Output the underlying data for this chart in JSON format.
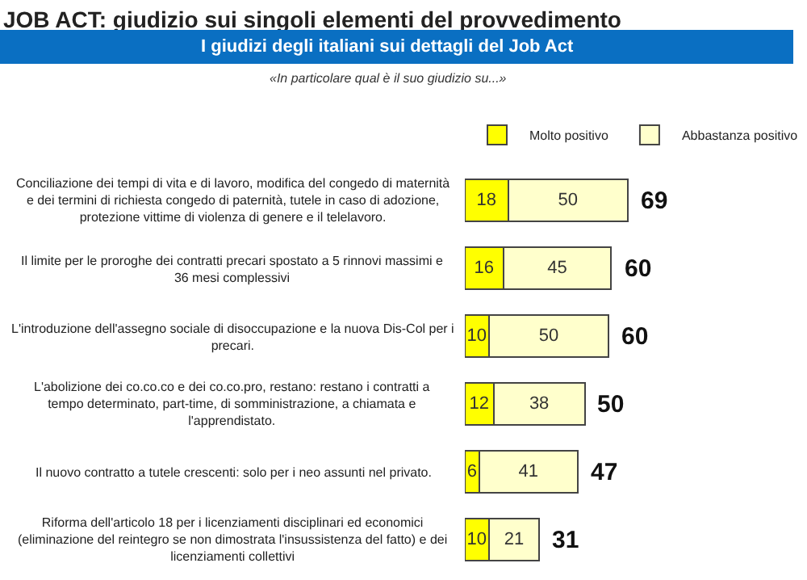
{
  "chart_data": {
    "type": "bar",
    "orientation": "horizontal",
    "stacked": true,
    "title": "JOB ACT: giudizio sui singoli elementi del provvedimento",
    "subtitle": "I giudizi degli italiani sui dettagli del Job Act",
    "annotations": [
      "«In particolare qual è il suo giudizio su...»"
    ],
    "categories": [
      "Conciliazione dei tempi di vita e di lavoro, modifica del congedo di maternità e dei termini di richiesta congedo di paternità, tutele in caso di adozione, protezione vittime di violenza di genere e il telelavoro.",
      "Il limite per le proroghe dei contratti precari spostato a 5 rinnovi massimi e 36 mesi complessivi",
      "L'introduzione dell'assegno sociale di disoccupazione e la nuova Dis-Col per i precari.",
      "L'abolizione dei co.co.co e dei co.co.pro, restano: restano i contratti a tempo determinato, part-time, di somministrazione, a chiamata e l'apprendistato.",
      "Il nuovo contratto a tutele crescenti: solo per i neo assunti nel privato.",
      "Riforma dell'articolo 18 per i licenziamenti disciplinari ed economici (eliminazione del reintegro se non dimostrata l'insussistenza del fatto) e dei licenziamenti collettivi"
    ],
    "series": [
      {
        "name": "Molto positivo",
        "color": "#ffff00",
        "values": [
          18,
          16,
          10,
          12,
          6,
          10
        ]
      },
      {
        "name": "Abbastanza positivo",
        "color": "#ffffcc",
        "values": [
          50,
          45,
          50,
          38,
          41,
          21
        ]
      }
    ],
    "data_labels": true,
    "totals": [
      "69",
      "60",
      "60",
      "50",
      "47",
      "31"
    ],
    "legend": "top"
  }
}
